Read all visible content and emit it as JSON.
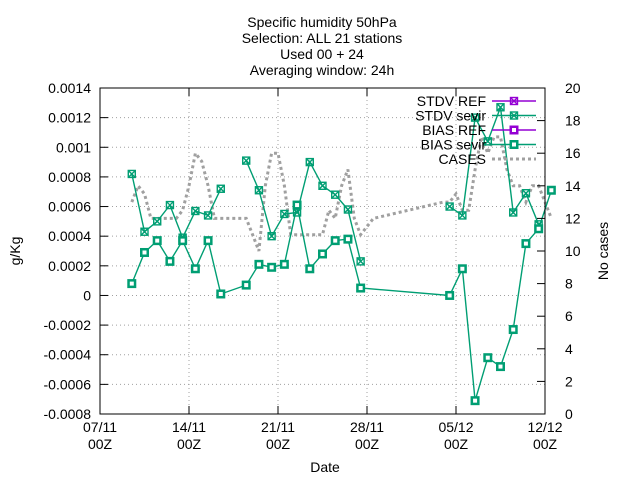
{
  "chart_data": {
    "type": "line",
    "title_lines": [
      "Specific humidity 50hPa",
      "Selection: ALL      21 stations",
      "Used 00 + 24",
      "Averaging window: 24h"
    ],
    "xlabel": "Date",
    "ylabel_left": "g/Kg",
    "ylabel_right": "No cases",
    "y_left_lim": [
      -0.0008,
      0.0014
    ],
    "y_right_lim": [
      0,
      20
    ],
    "x_ticks": [
      {
        "d": 0,
        "l1": "07/11",
        "l2": "00Z"
      },
      {
        "d": 7,
        "l1": "14/11",
        "l2": "00Z"
      },
      {
        "d": 14,
        "l1": "21/11",
        "l2": "00Z"
      },
      {
        "d": 21,
        "l1": "28/11",
        "l2": "00Z"
      },
      {
        "d": 28,
        "l1": "05/12",
        "l2": "00Z"
      },
      {
        "d": 35,
        "l1": "12/12",
        "l2": "00Z"
      }
    ],
    "y_left_ticks": [
      "0.0014",
      "0.0012",
      "0.001",
      "0.0008",
      "0.0006",
      "0.0004",
      "0.0002",
      "0",
      "-0.0002",
      "-0.0004",
      "-0.0006",
      "-0.0008"
    ],
    "y_right_ticks": [
      "20",
      "18",
      "16",
      "14",
      "12",
      "10",
      "8",
      "6",
      "4",
      "2",
      "0"
    ],
    "grid": true,
    "legend_position": "top-right",
    "series": [
      {
        "name": "STDV REF",
        "axis": "left",
        "color": "#9400d3",
        "marker": "x-box",
        "x": [],
        "y": []
      },
      {
        "name": "STDV sevir",
        "axis": "left",
        "color": "#009e73",
        "marker": "x-box",
        "x": [
          2.5,
          3.5,
          4.5,
          5.5,
          6.5,
          7.5,
          8.5,
          9.5,
          10.5,
          11.5,
          12.5,
          13.5,
          14.5,
          15.5,
          16.5,
          17.5,
          18.5,
          19.5,
          20.5,
          21.5,
          27.5,
          28.5,
          29.5,
          30.5,
          31.5,
          32.5,
          33.5,
          34.5,
          35.5
        ],
        "y": [
          0.00082,
          0.00043,
          0.0005,
          0.00061,
          0.00039,
          0.00057,
          0.00054,
          0.00072,
          null,
          0.00091,
          0.00071,
          0.0004,
          0.00055,
          0.00056,
          0.0009,
          0.00074,
          0.00068,
          0.00058,
          0.00023,
          null,
          0.0006,
          0.00054,
          0.0012,
          0.00104,
          0.00127,
          0.00056,
          0.00069,
          0.00048,
          null
        ]
      },
      {
        "name": "BIAS REF",
        "axis": "left",
        "color": "#9400d3",
        "marker": "sq-box",
        "x": [],
        "y": []
      },
      {
        "name": "BIAS sevir",
        "axis": "left",
        "color": "#009e73",
        "marker": "sq-box",
        "x": [
          2.5,
          3.5,
          4.5,
          5.5,
          6.5,
          7.5,
          8.5,
          9.5,
          11.5,
          12.5,
          13.5,
          14.5,
          15.5,
          16.5,
          17.5,
          18.5,
          19.5,
          20.5,
          27.5,
          28.5,
          29.5,
          30.5,
          31.5,
          32.5,
          33.5,
          34.5,
          35.5
        ],
        "y": [
          8e-05,
          0.00029,
          0.00037,
          0.00023,
          0.00037,
          0.00018,
          0.00037,
          1e-05,
          7e-05,
          0.00021,
          0.00019,
          0.00021,
          0.00061,
          0.00018,
          0.00028,
          0.00037,
          0.00038,
          5e-05,
          0.0,
          0.00018,
          -0.00071,
          -0.00042,
          -0.00048,
          -0.00023,
          0.00035,
          0.00045,
          0.00071
        ]
      },
      {
        "name": "CASES",
        "axis": "right",
        "color": "#a0a0a0",
        "style": "dotted",
        "x": [
          2.5,
          3.0,
          3.5,
          4.0,
          4.5,
          5.0,
          5.5,
          6.0,
          6.5,
          7.0,
          7.5,
          8.0,
          8.5,
          9.0,
          9.5,
          10.5,
          11.5,
          12.0,
          12.5,
          13.0,
          13.5,
          14.0,
          14.5,
          15.0,
          15.5,
          16.0,
          16.5,
          17.0,
          17.5,
          18.0,
          18.5,
          19.0,
          19.5,
          20.0,
          20.5,
          21.5,
          27.0,
          27.5,
          28.0,
          28.5,
          29.0,
          29.5,
          30.0,
          30.5,
          31.0,
          31.5,
          32.0,
          32.5,
          33.0,
          33.5,
          34.0,
          34.5,
          35.0,
          35.5
        ],
        "y": [
          13,
          14,
          13.5,
          12,
          12,
          12,
          12,
          12,
          12.5,
          14,
          16,
          15.5,
          14,
          12,
          12,
          12,
          12,
          11,
          10,
          14,
          16,
          16,
          14,
          11,
          11,
          11,
          11,
          11,
          11,
          12.5,
          12,
          14,
          15,
          12,
          11,
          12,
          13,
          13,
          13.5,
          12.5,
          12.5,
          15,
          17,
          16,
          17,
          17,
          15,
          14,
          14,
          13,
          14,
          14,
          13,
          12
        ]
      }
    ]
  }
}
